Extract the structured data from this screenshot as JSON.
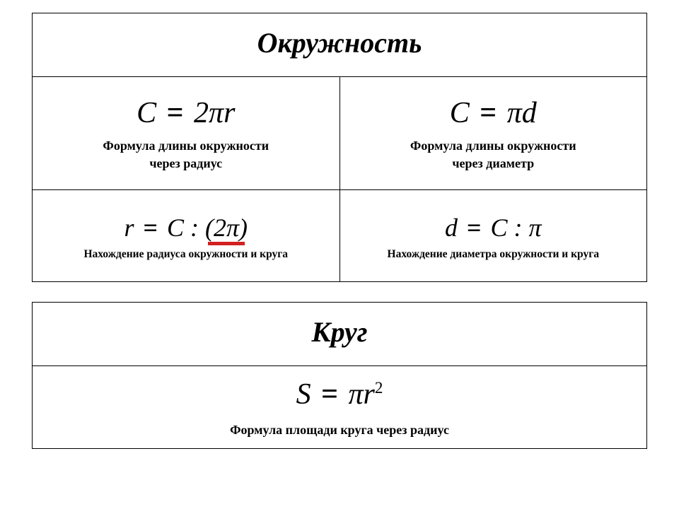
{
  "table1": {
    "title": "Окружность",
    "row1": {
      "left": {
        "formula_html": "<span style='font-style:italic'>C</span> <span class='eq'>=</span> 2<span style='font-style:italic'>πr</span>",
        "caption": "Формула длины окружности<br>через радиус"
      },
      "right": {
        "formula_html": "<span style='font-style:italic'>C</span> <span class='eq'>=</span> <span style='font-style:italic'>πd</span>",
        "caption": "Формула длины окружности<br>через диаметр"
      }
    },
    "row2": {
      "left": {
        "formula_html": "<span style='font-style:italic'>r</span> <span class='eq'>=</span> <span style='font-style:italic'>C</span> : <span class='underline-red'>(2<span style='font-style:italic'>π</span>)</span>",
        "caption": "Нахождение  радиуса окружности и круга"
      },
      "right": {
        "formula_html": "<span style='font-style:italic'>d</span> <span class='eq'>=</span> <span style='font-style:italic'>C</span> : <span style='font-style:italic'>π</span>",
        "caption": "Нахождение  диаметра окружности и круга"
      }
    }
  },
  "table2": {
    "title": "Круг",
    "area": {
      "formula_html": "<span style='font-style:italic'>S</span> <span class='eq'>=</span> <span style='font-style:italic'>πr</span><span class='sup'>2</span>",
      "caption": "Формула площади круга через радиус"
    }
  },
  "colors": {
    "border": "#000000",
    "background": "#ffffff",
    "underline": "#d32020"
  },
  "typography": {
    "title_fontsize_pt": 30,
    "formula_big_pt": 32,
    "formula_mid_pt": 27,
    "caption_pt": 14,
    "caption_small_pt": 12,
    "font_family": "Times New Roman",
    "title_style": "bold italic"
  }
}
